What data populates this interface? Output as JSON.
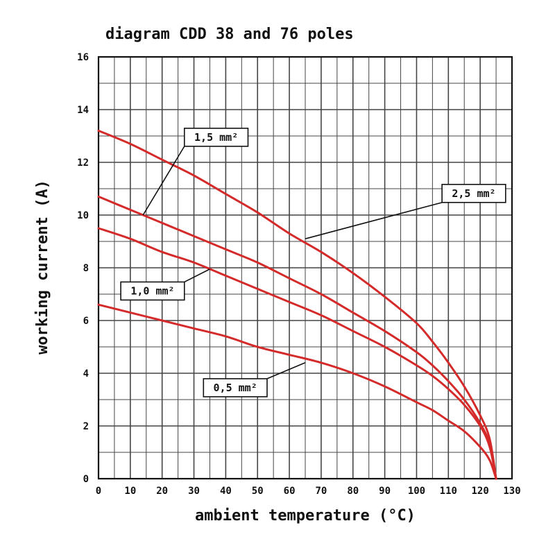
{
  "chart_data": {
    "type": "line",
    "title": "diagram CDD 38 and 76 poles",
    "xlabel": "ambient temperature (°C)",
    "ylabel": "working current (A)",
    "xlim": [
      0,
      130
    ],
    "ylim": [
      0,
      16
    ],
    "x_ticks": [
      "0",
      "10",
      "20",
      "30",
      "40",
      "50",
      "60",
      "70",
      "80",
      "90",
      "100",
      "110",
      "120",
      "130"
    ],
    "y_ticks": [
      "0",
      "2",
      "4",
      "6",
      "8",
      "10",
      "12",
      "14",
      "16"
    ],
    "grid": true,
    "line_color": "#d42a2a",
    "series": [
      {
        "name": "2,5 mm²",
        "x": [
          0,
          10,
          20,
          30,
          40,
          50,
          60,
          70,
          80,
          90,
          100,
          105,
          110,
          115,
          120,
          123,
          125
        ],
        "y": [
          13.2,
          12.7,
          12.1,
          11.5,
          10.8,
          10.1,
          9.3,
          8.6,
          7.8,
          6.9,
          5.9,
          5.2,
          4.4,
          3.5,
          2.4,
          1.5,
          0
        ]
      },
      {
        "name": "1,5 mm²",
        "x": [
          0,
          10,
          20,
          30,
          40,
          50,
          60,
          70,
          80,
          90,
          100,
          105,
          110,
          115,
          120,
          123,
          125
        ],
        "y": [
          10.7,
          10.2,
          9.7,
          9.2,
          8.7,
          8.2,
          7.6,
          7.0,
          6.3,
          5.6,
          4.8,
          4.3,
          3.7,
          3.0,
          2.1,
          1.3,
          0
        ]
      },
      {
        "name": "1,0 mm²",
        "x": [
          0,
          10,
          20,
          30,
          40,
          50,
          60,
          70,
          80,
          90,
          100,
          105,
          110,
          115,
          120,
          123,
          125
        ],
        "y": [
          9.5,
          9.1,
          8.6,
          8.2,
          7.7,
          7.2,
          6.7,
          6.2,
          5.6,
          5.0,
          4.3,
          3.9,
          3.4,
          2.8,
          2.0,
          1.2,
          0
        ]
      },
      {
        "name": "0,5 mm²",
        "x": [
          0,
          10,
          20,
          30,
          40,
          50,
          60,
          70,
          80,
          90,
          100,
          105,
          110,
          115,
          120,
          123,
          125
        ],
        "y": [
          6.6,
          6.3,
          6.0,
          5.7,
          5.4,
          5.0,
          4.7,
          4.4,
          4.0,
          3.5,
          2.9,
          2.6,
          2.2,
          1.8,
          1.2,
          0.7,
          0
        ]
      }
    ],
    "annotations": [
      {
        "text": "1,5 mm²",
        "series": 1,
        "box_x": 27,
        "box_y": 12.95,
        "box_w": 20,
        "point_x": 14,
        "point_y": 10.0
      },
      {
        "text": "2,5 mm²",
        "series": 0,
        "box_x": 108,
        "box_y": 10.82,
        "box_w": 20,
        "point_x": 65,
        "point_y": 9.1
      },
      {
        "text": "1,0 mm²",
        "series": 2,
        "box_x": 7,
        "box_y": 7.12,
        "box_w": 20,
        "point_x": 35,
        "point_y": 7.95
      },
      {
        "text": "0,5 mm²",
        "series": 3,
        "box_x": 33,
        "box_y": 3.45,
        "box_w": 20,
        "point_x": 65,
        "point_y": 4.4
      }
    ]
  }
}
